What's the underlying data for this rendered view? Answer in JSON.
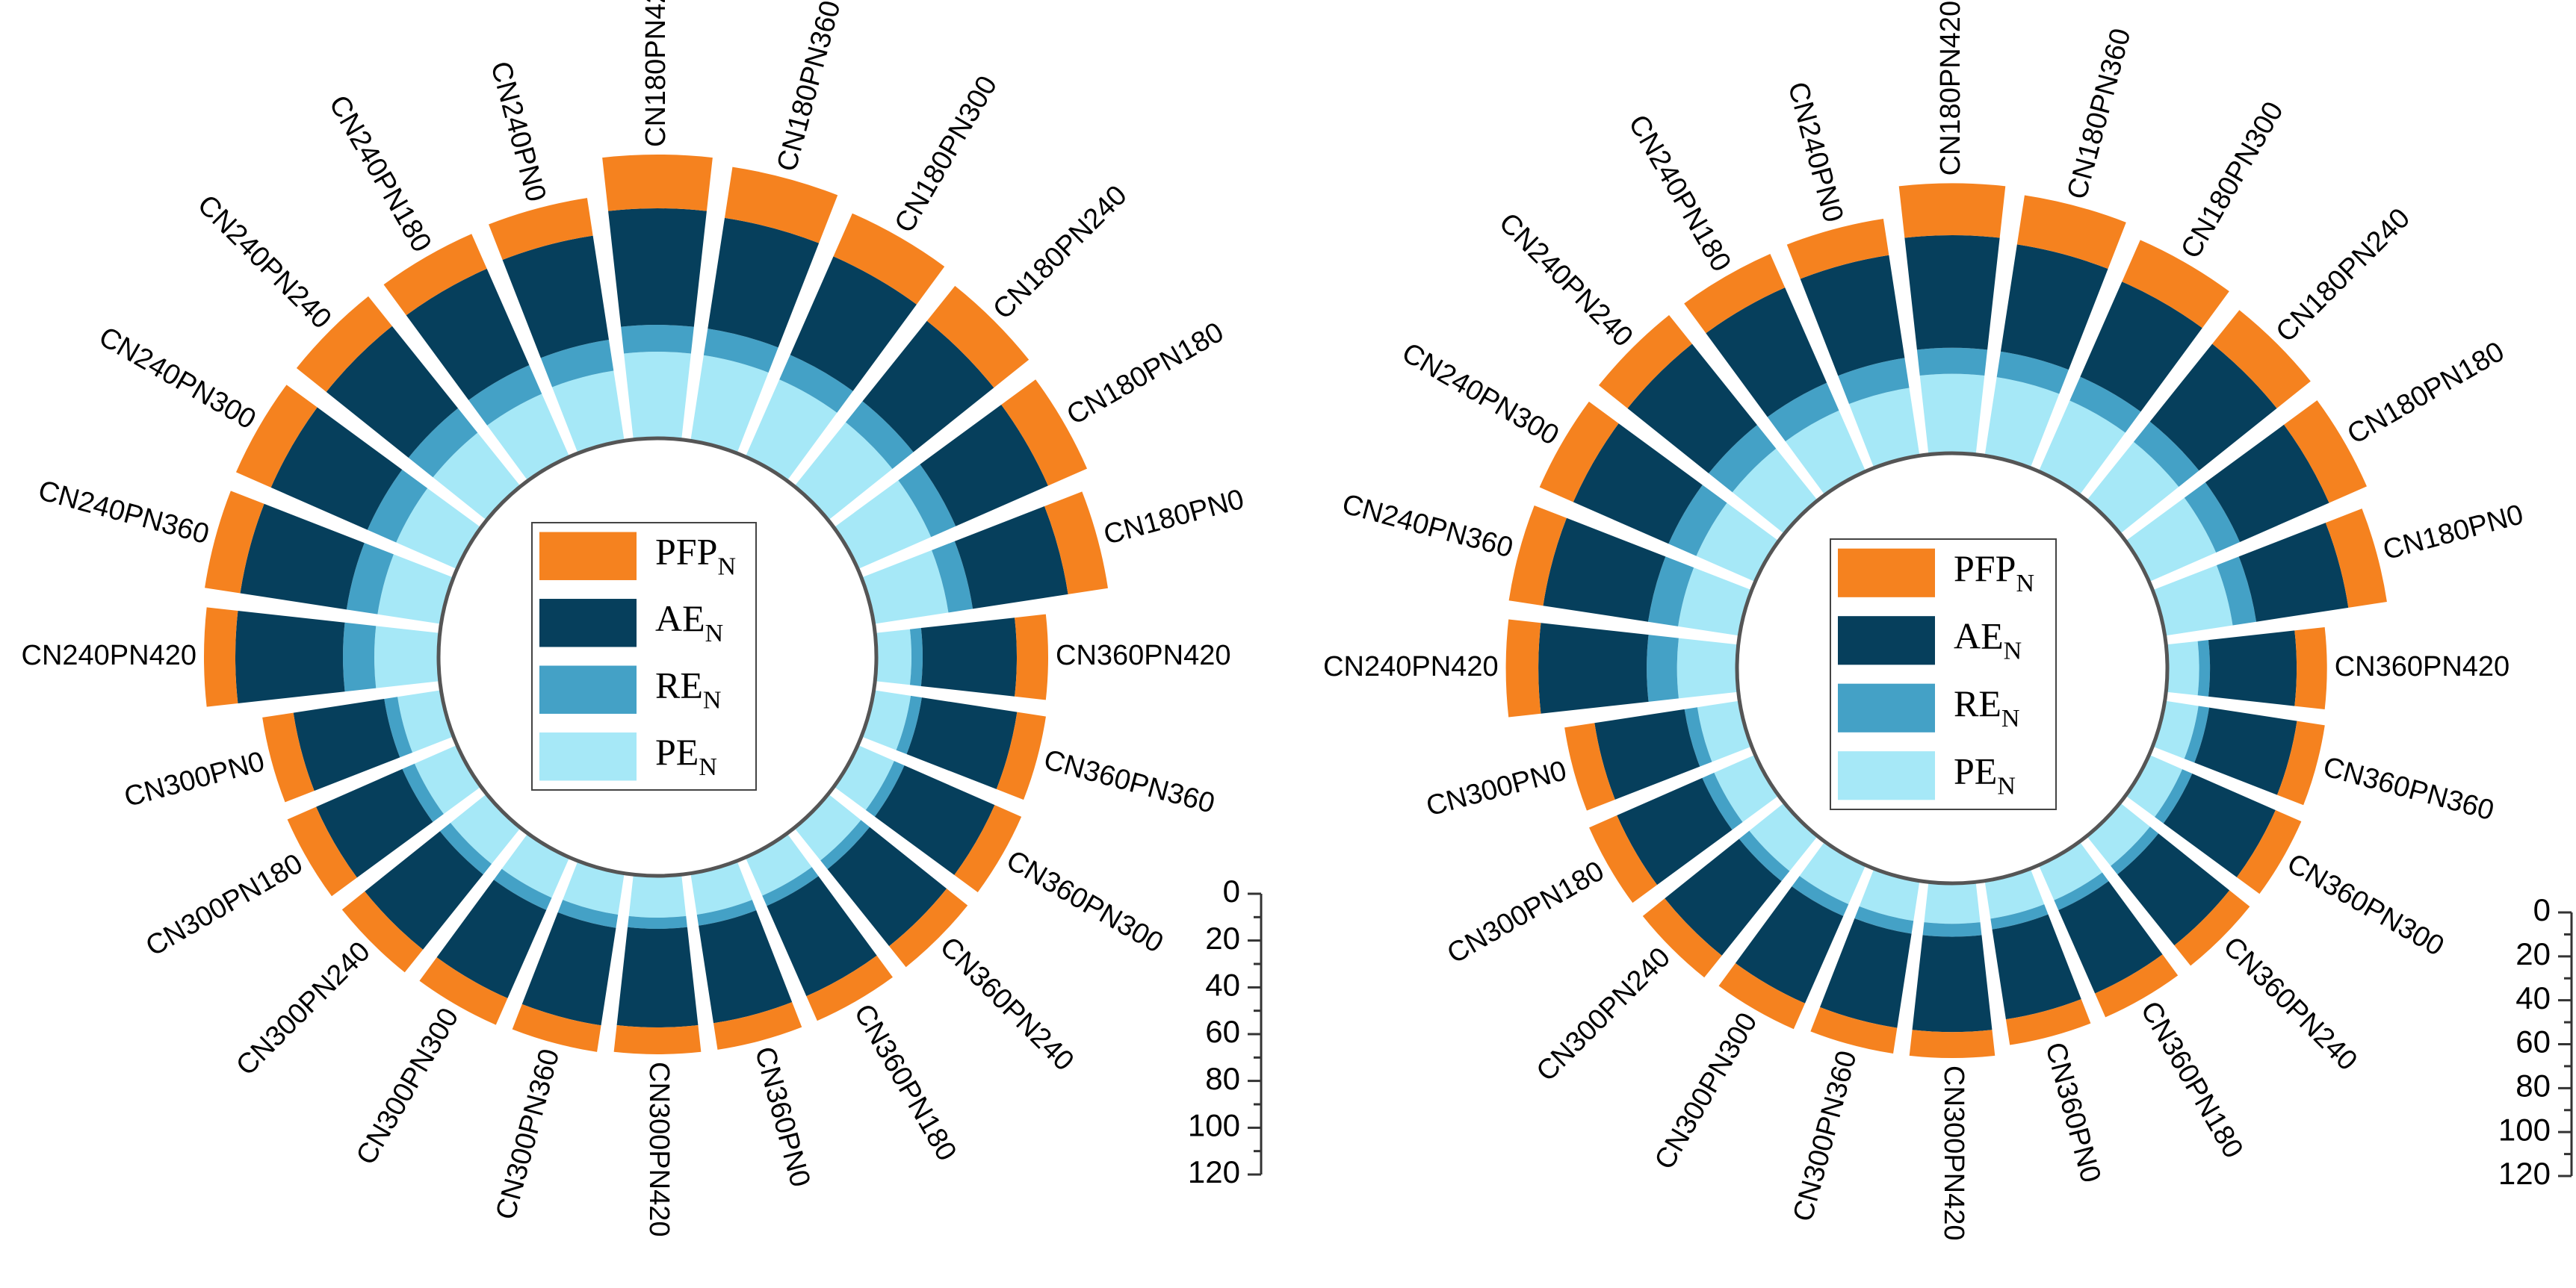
{
  "colors": {
    "PFP": "#f5821f",
    "AE": "#063f5c",
    "RE": "#44a1c6",
    "PE": "#a6e8f7",
    "circle": "#555555",
    "axis": "#333333",
    "text": "#000000"
  },
  "chart_data": [
    {
      "type": "radial-stacked-bar",
      "series": [
        {
          "name": "PFP",
          "sub": "N",
          "color_key": "PFP"
        },
        {
          "name": "AE",
          "sub": "N",
          "color_key": "AE"
        },
        {
          "name": "RE",
          "sub": "N",
          "color_key": "RE"
        },
        {
          "name": "PE",
          "sub": "N",
          "color_key": "PE"
        }
      ],
      "scale_ticks": [
        "0",
        "20",
        "40",
        "60",
        "80",
        "100",
        "120"
      ],
      "scale_range": [
        0,
        120
      ],
      "categories": [
        {
          "label": "CN180PN420",
          "PE": 38,
          "RE": 12,
          "AE": 52,
          "PFP": 24
        },
        {
          "label": "CN180PN360",
          "PE": 38,
          "RE": 12,
          "AE": 50,
          "PFP": 23
        },
        {
          "label": "CN180PN300",
          "PE": 37,
          "RE": 12,
          "AE": 48,
          "PFP": 21
        },
        {
          "label": "CN180PN240",
          "PE": 36,
          "RE": 12,
          "AE": 46,
          "PFP": 20
        },
        {
          "label": "CN180PN180",
          "PE": 35,
          "RE": 12,
          "AE": 45,
          "PFP": 19
        },
        {
          "label": "CN180PN0",
          "PE": 33,
          "RE": 11,
          "AE": 43,
          "PFP": 18
        },
        {
          "label": "CN360PN420",
          "PE": 15,
          "RE": 5,
          "AE": 42,
          "PFP": 14
        },
        {
          "label": "CN360PN360",
          "PE": 16,
          "RE": 5,
          "AE": 43,
          "PFP": 13
        },
        {
          "label": "CN360PN300",
          "PE": 17,
          "RE": 5,
          "AE": 44,
          "PFP": 13
        },
        {
          "label": "CN360PN240",
          "PE": 18,
          "RE": 5,
          "AE": 44,
          "PFP": 12
        },
        {
          "label": "CN360PN180",
          "PE": 18,
          "RE": 5,
          "AE": 44,
          "PFP": 12
        },
        {
          "label": "CN360PN0",
          "PE": 18,
          "RE": 5,
          "AE": 44,
          "PFP": 12
        },
        {
          "label": "CN300PN420",
          "PE": 18,
          "RE": 5,
          "AE": 44,
          "PFP": 12
        },
        {
          "label": "CN300PN360",
          "PE": 18,
          "RE": 6,
          "AE": 44,
          "PFP": 12
        },
        {
          "label": "CN300PN300",
          "PE": 19,
          "RE": 6,
          "AE": 43,
          "PFP": 13
        },
        {
          "label": "CN300PN240",
          "PE": 20,
          "RE": 6,
          "AE": 43,
          "PFP": 13
        },
        {
          "label": "CN300PN180",
          "PE": 20,
          "RE": 6,
          "AE": 42,
          "PFP": 14
        },
        {
          "label": "CN300PN0",
          "PE": 19,
          "RE": 6,
          "AE": 41,
          "PFP": 14
        },
        {
          "label": "CN240PN420",
          "PE": 28,
          "RE": 14,
          "AE": 48,
          "PFP": 14
        },
        {
          "label": "CN240PN360",
          "PE": 28,
          "RE": 14,
          "AE": 48,
          "PFP": 16
        },
        {
          "label": "CN240PN300",
          "PE": 29,
          "RE": 14,
          "AE": 47,
          "PFP": 17
        },
        {
          "label": "CN240PN240",
          "PE": 30,
          "RE": 14,
          "AE": 47,
          "PFP": 17
        },
        {
          "label": "CN240PN180",
          "PE": 30,
          "RE": 14,
          "AE": 47,
          "PFP": 17
        },
        {
          "label": "CN240PN0",
          "PE": 31,
          "RE": 14,
          "AE": 47,
          "PFP": 17
        }
      ]
    },
    {
      "type": "radial-stacked-bar",
      "series": [
        {
          "name": "PFP",
          "sub": "N",
          "color_key": "PFP"
        },
        {
          "name": "AE",
          "sub": "N",
          "color_key": "AE"
        },
        {
          "name": "RE",
          "sub": "N",
          "color_key": "RE"
        },
        {
          "name": "PE",
          "sub": "N",
          "color_key": "PE"
        }
      ],
      "scale_ticks": [
        "0",
        "20",
        "40",
        "60",
        "80",
        "100",
        "120"
      ],
      "scale_range": [
        0,
        120
      ],
      "categories": [
        {
          "label": "CN180PN420",
          "PE": 36,
          "RE": 12,
          "AE": 52,
          "PFP": 24
        },
        {
          "label": "CN180PN360",
          "PE": 36,
          "RE": 12,
          "AE": 50,
          "PFP": 23
        },
        {
          "label": "CN180PN300",
          "PE": 35,
          "RE": 12,
          "AE": 48,
          "PFP": 21
        },
        {
          "label": "CN180PN240",
          "PE": 34,
          "RE": 12,
          "AE": 46,
          "PFP": 20
        },
        {
          "label": "CN180PN180",
          "PE": 33,
          "RE": 12,
          "AE": 45,
          "PFP": 19
        },
        {
          "label": "CN180PN0",
          "PE": 31,
          "RE": 11,
          "AE": 43,
          "PFP": 18
        },
        {
          "label": "CN360PN420",
          "PE": 14,
          "RE": 5,
          "AE": 40,
          "PFP": 14
        },
        {
          "label": "CN360PN360",
          "PE": 15,
          "RE": 5,
          "AE": 41,
          "PFP": 13
        },
        {
          "label": "CN360PN300",
          "PE": 16,
          "RE": 5,
          "AE": 42,
          "PFP": 13
        },
        {
          "label": "CN360PN240",
          "PE": 17,
          "RE": 5,
          "AE": 42,
          "PFP": 12
        },
        {
          "label": "CN360PN180",
          "PE": 17,
          "RE": 5,
          "AE": 42,
          "PFP": 12
        },
        {
          "label": "CN360PN0",
          "PE": 17,
          "RE": 5,
          "AE": 42,
          "PFP": 12
        },
        {
          "label": "CN300PN420",
          "PE": 18,
          "RE": 6,
          "AE": 44,
          "PFP": 12
        },
        {
          "label": "CN300PN360",
          "PE": 18,
          "RE": 6,
          "AE": 44,
          "PFP": 12
        },
        {
          "label": "CN300PN300",
          "PE": 19,
          "RE": 6,
          "AE": 44,
          "PFP": 13
        },
        {
          "label": "CN300PN240",
          "PE": 20,
          "RE": 6,
          "AE": 44,
          "PFP": 13
        },
        {
          "label": "CN300PN180",
          "PE": 20,
          "RE": 6,
          "AE": 43,
          "PFP": 14
        },
        {
          "label": "CN300PN0",
          "PE": 19,
          "RE": 6,
          "AE": 42,
          "PFP": 14
        },
        {
          "label": "CN240PN420",
          "PE": 27,
          "RE": 14,
          "AE": 50,
          "PFP": 15
        },
        {
          "label": "CN240PN360",
          "PE": 28,
          "RE": 14,
          "AE": 49,
          "PFP": 16
        },
        {
          "label": "CN240PN300",
          "PE": 29,
          "RE": 14,
          "AE": 48,
          "PFP": 17
        },
        {
          "label": "CN240PN240",
          "PE": 30,
          "RE": 14,
          "AE": 48,
          "PFP": 17
        },
        {
          "label": "CN240PN180",
          "PE": 30,
          "RE": 14,
          "AE": 48,
          "PFP": 17
        },
        {
          "label": "CN240PN0",
          "PE": 31,
          "RE": 14,
          "AE": 48,
          "PFP": 17
        }
      ]
    }
  ]
}
